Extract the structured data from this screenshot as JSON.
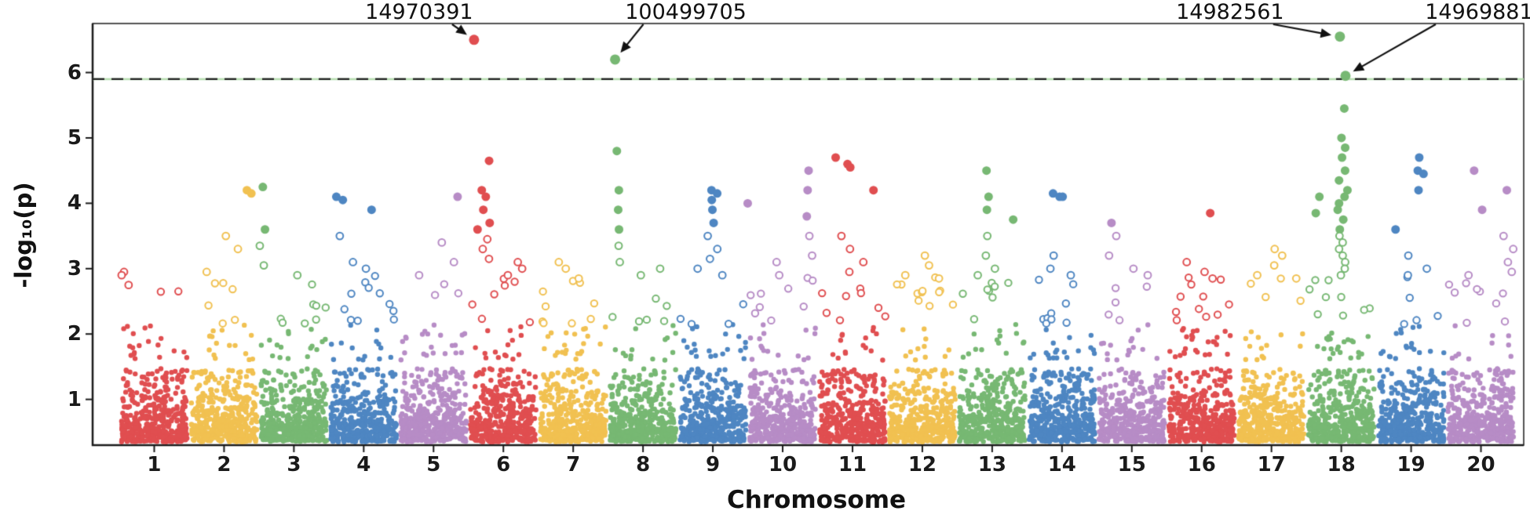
{
  "figure": {
    "background": "#ffffff"
  },
  "chart_data": {
    "type": "scatter",
    "subtype": "manhattan",
    "title": "",
    "xlabel": "Chromosome",
    "ylabel": "-log₁₀(p)",
    "ylim": [
      0.3,
      6.75
    ],
    "yticks": [
      1,
      2,
      3,
      4,
      5,
      6
    ],
    "categories": [
      "1",
      "2",
      "3",
      "4",
      "5",
      "6",
      "7",
      "8",
      "9",
      "10",
      "11",
      "12",
      "13",
      "14",
      "15",
      "16",
      "17",
      "18",
      "19",
      "20"
    ],
    "palette": [
      "#E04E50",
      "#F1C151",
      "#77B873",
      "#4E86C2",
      "#B78CC6"
    ],
    "grid": false,
    "legend": false,
    "threshold": {
      "value": 5.9,
      "style": "dashed",
      "line_color": "#1f1f1f",
      "underlay_color": "#b5dcae"
    },
    "background_points": {
      "per_chromosome": 430,
      "y_floor": 0.35,
      "y_cloud_max": 2.9,
      "note": "dense GWAS background cloud, density decreasing upward; open circles above ~2.15"
    },
    "annotations": [
      {
        "label": "14970391",
        "chrom": 6,
        "rel": 0.08,
        "y": 6.5,
        "label_dx": -70
      },
      {
        "label": "100499705",
        "chrom": 8,
        "rel": 0.1,
        "y": 6.2,
        "label_dx": 90
      },
      {
        "label": "14982561",
        "chrom": 18,
        "rel": 0.48,
        "y": 6.55,
        "label_dx": -140
      },
      {
        "label": "14969881",
        "chrom": 18,
        "rel": 0.56,
        "y": 5.95,
        "label_dx": 170
      }
    ],
    "peaks": [
      {
        "chrom": 1,
        "pts": [
          [
            0.05,
            2.95
          ],
          [
            0.06,
            2.9
          ],
          [
            0.08,
            2.75
          ]
        ]
      },
      {
        "chrom": 2,
        "pts": [
          [
            0.8,
            4.2
          ],
          [
            0.85,
            4.15
          ],
          [
            0.5,
            3.5
          ],
          [
            0.75,
            3.3
          ],
          [
            0.3,
            2.95
          ]
        ]
      },
      {
        "chrom": 3,
        "pts": [
          [
            0.05,
            4.25
          ],
          [
            0.08,
            3.6
          ],
          [
            0.05,
            3.35
          ],
          [
            0.1,
            3.05
          ],
          [
            0.5,
            2.9
          ]
        ]
      },
      {
        "chrom": 4,
        "pts": [
          [
            0.15,
            4.1
          ],
          [
            0.25,
            4.05
          ],
          [
            0.6,
            3.9
          ],
          [
            0.2,
            3.5
          ],
          [
            0.3,
            3.1
          ],
          [
            0.55,
            3.0
          ]
        ]
      },
      {
        "chrom": 5,
        "pts": [
          [
            0.85,
            4.1
          ],
          [
            0.6,
            3.4
          ],
          [
            0.8,
            3.1
          ],
          [
            0.3,
            2.9
          ]
        ]
      },
      {
        "chrom": 6,
        "pts": [
          [
            0.25,
            4.65
          ],
          [
            0.2,
            4.2
          ],
          [
            0.22,
            4.1
          ],
          [
            0.2,
            3.9
          ],
          [
            0.25,
            3.7
          ],
          [
            0.18,
            3.6
          ],
          [
            0.22,
            3.45
          ],
          [
            0.2,
            3.3
          ],
          [
            0.24,
            3.15
          ],
          [
            0.7,
            3.1
          ],
          [
            0.72,
            3.0
          ],
          [
            0.6,
            2.9
          ]
        ]
      },
      {
        "chrom": 7,
        "pts": [
          [
            0.35,
            3.1
          ],
          [
            0.4,
            3.0
          ],
          [
            0.6,
            2.85
          ]
        ]
      },
      {
        "chrom": 8,
        "pts": [
          [
            0.12,
            4.8
          ],
          [
            0.1,
            4.2
          ],
          [
            0.12,
            3.9
          ],
          [
            0.1,
            3.6
          ],
          [
            0.14,
            3.35
          ],
          [
            0.12,
            3.1
          ],
          [
            0.8,
            3.0
          ],
          [
            0.5,
            2.9
          ]
        ]
      },
      {
        "chrom": 9,
        "pts": [
          [
            0.5,
            4.2
          ],
          [
            0.55,
            4.15
          ],
          [
            0.45,
            4.05
          ],
          [
            0.5,
            3.9
          ],
          [
            0.52,
            3.7
          ],
          [
            0.48,
            3.5
          ],
          [
            0.55,
            3.3
          ],
          [
            0.5,
            3.15
          ],
          [
            0.3,
            3.0
          ],
          [
            0.6,
            2.9
          ]
        ]
      },
      {
        "chrom": 10,
        "pts": [
          [
            0.85,
            4.5
          ],
          [
            0.88,
            4.2
          ],
          [
            0.03,
            4.0
          ],
          [
            0.82,
            3.8
          ],
          [
            0.85,
            3.5
          ],
          [
            0.87,
            3.2
          ],
          [
            0.4,
            3.1
          ],
          [
            0.5,
            2.9
          ]
        ]
      },
      {
        "chrom": 11,
        "pts": [
          [
            0.25,
            4.7
          ],
          [
            0.45,
            4.6
          ],
          [
            0.5,
            4.55
          ],
          [
            0.85,
            4.2
          ],
          [
            0.3,
            3.5
          ],
          [
            0.5,
            3.3
          ],
          [
            0.6,
            3.1
          ],
          [
            0.4,
            2.95
          ]
        ]
      },
      {
        "chrom": 12,
        "pts": [
          [
            0.5,
            3.2
          ],
          [
            0.55,
            3.05
          ],
          [
            0.3,
            2.9
          ],
          [
            0.7,
            2.85
          ]
        ]
      },
      {
        "chrom": 13,
        "pts": [
          [
            0.45,
            4.5
          ],
          [
            0.4,
            4.1
          ],
          [
            0.42,
            3.9
          ],
          [
            0.85,
            3.75
          ],
          [
            0.45,
            3.5
          ],
          [
            0.4,
            3.2
          ],
          [
            0.5,
            3.0
          ],
          [
            0.3,
            2.9
          ]
        ]
      },
      {
        "chrom": 14,
        "pts": [
          [
            0.35,
            4.15
          ],
          [
            0.5,
            4.1
          ],
          [
            0.55,
            4.1
          ],
          [
            0.4,
            3.2
          ],
          [
            0.3,
            3.0
          ],
          [
            0.6,
            2.9
          ]
        ]
      },
      {
        "chrom": 15,
        "pts": [
          [
            0.2,
            3.7
          ],
          [
            0.25,
            3.5
          ],
          [
            0.22,
            3.2
          ],
          [
            0.5,
            3.0
          ],
          [
            0.7,
            2.9
          ]
        ]
      },
      {
        "chrom": 16,
        "pts": [
          [
            0.6,
            3.85
          ],
          [
            0.3,
            3.1
          ],
          [
            0.5,
            2.95
          ],
          [
            0.7,
            2.85
          ]
        ]
      },
      {
        "chrom": 17,
        "pts": [
          [
            0.55,
            3.3
          ],
          [
            0.6,
            3.2
          ],
          [
            0.5,
            3.05
          ],
          [
            0.3,
            2.9
          ],
          [
            0.8,
            2.85
          ]
        ]
      },
      {
        "chrom": 18,
        "pts": [
          [
            0.5,
            5.45
          ],
          [
            0.52,
            5.0
          ],
          [
            0.5,
            4.85
          ],
          [
            0.55,
            4.7
          ],
          [
            0.5,
            4.5
          ],
          [
            0.52,
            4.35
          ],
          [
            0.55,
            4.2
          ],
          [
            0.5,
            4.1
          ],
          [
            0.15,
            4.1
          ],
          [
            0.52,
            4.0
          ],
          [
            0.5,
            3.9
          ],
          [
            0.15,
            3.85
          ],
          [
            0.55,
            3.75
          ],
          [
            0.5,
            3.6
          ],
          [
            0.52,
            3.5
          ],
          [
            0.55,
            3.4
          ],
          [
            0.5,
            3.3
          ],
          [
            0.52,
            3.2
          ],
          [
            0.5,
            3.1
          ],
          [
            0.55,
            3.0
          ],
          [
            0.5,
            2.9
          ]
        ]
      },
      {
        "chrom": 19,
        "pts": [
          [
            0.65,
            4.7
          ],
          [
            0.6,
            4.5
          ],
          [
            0.68,
            4.45
          ],
          [
            0.62,
            4.2
          ],
          [
            0.3,
            3.6
          ],
          [
            0.5,
            3.2
          ],
          [
            0.7,
            3.0
          ],
          [
            0.4,
            2.9
          ]
        ]
      },
      {
        "chrom": 20,
        "pts": [
          [
            0.45,
            4.5
          ],
          [
            0.9,
            4.2
          ],
          [
            0.5,
            3.9
          ],
          [
            0.85,
            3.5
          ],
          [
            0.95,
            3.3
          ],
          [
            0.9,
            3.1
          ],
          [
            0.92,
            2.95
          ],
          [
            0.3,
            2.9
          ]
        ]
      }
    ]
  }
}
